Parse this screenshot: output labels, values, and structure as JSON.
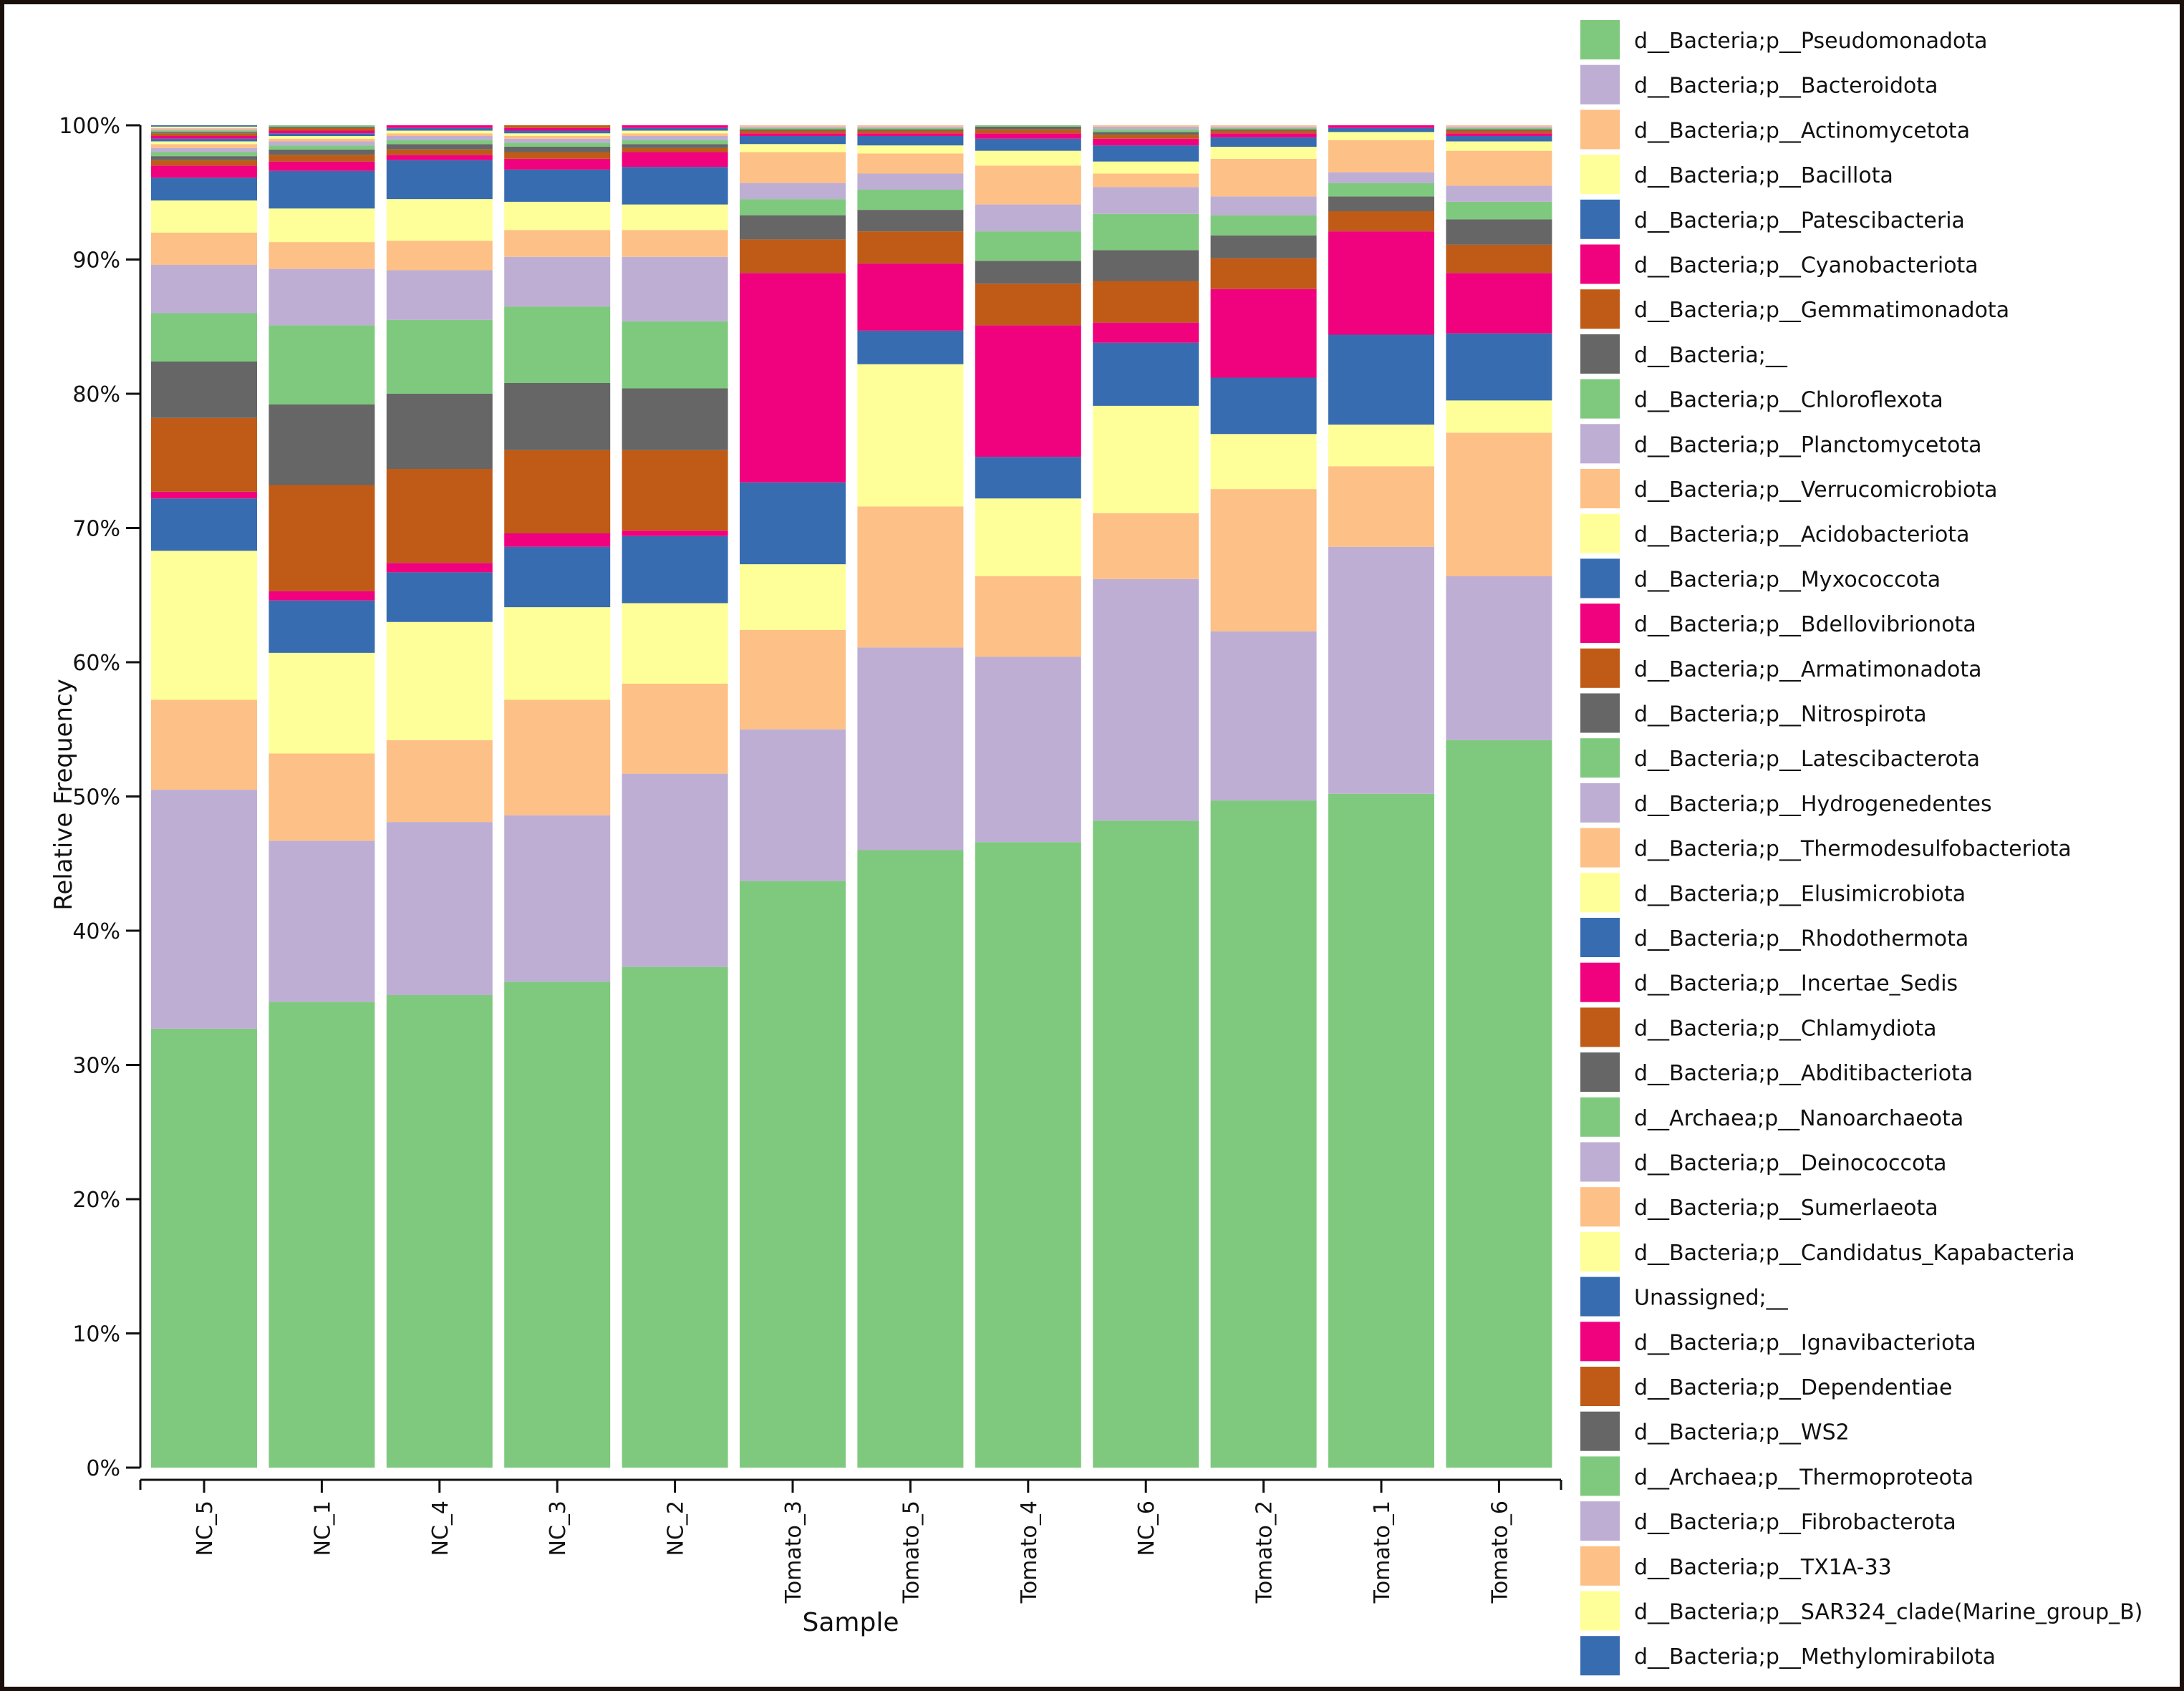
{
  "chart_data": {
    "type": "bar",
    "stacked": true,
    "xlabel": "Sample",
    "ylabel": "Relative Frequency",
    "ylim": [
      0,
      1
    ],
    "yticks": [
      "0%",
      "10%",
      "20%",
      "30%",
      "40%",
      "50%",
      "60%",
      "70%",
      "80%",
      "90%",
      "100%"
    ],
    "legend_position": "right",
    "categories": [
      "NC_5",
      "NC_1",
      "NC_4",
      "NC_3",
      "NC_2",
      "Tomato_3",
      "Tomato_5",
      "Tomato_4",
      "NC_6",
      "Tomato_2",
      "Tomato_1",
      "Tomato_6"
    ],
    "series": [
      {
        "name": "d__Bacteria;p__Pseudomonadota",
        "color": "#7fc97f",
        "values": [
          0.327,
          0.347,
          0.352,
          0.362,
          0.373,
          0.437,
          0.46,
          0.466,
          0.482,
          0.497,
          0.502,
          0.542
        ]
      },
      {
        "name": "d__Bacteria;p__Bacteroidota",
        "color": "#beaed4",
        "values": [
          0.178,
          0.12,
          0.129,
          0.124,
          0.144,
          0.113,
          0.151,
          0.138,
          0.18,
          0.126,
          0.184,
          0.122
        ]
      },
      {
        "name": "d__Bacteria;p__Actinomycetota",
        "color": "#fdc086",
        "values": [
          0.067,
          0.065,
          0.061,
          0.086,
          0.067,
          0.074,
          0.105,
          0.06,
          0.049,
          0.106,
          0.06,
          0.107
        ]
      },
      {
        "name": "d__Bacteria;p__Bacillota",
        "color": "#ffff99",
        "values": [
          0.111,
          0.075,
          0.088,
          0.069,
          0.06,
          0.049,
          0.106,
          0.058,
          0.08,
          0.041,
          0.031,
          0.024
        ]
      },
      {
        "name": "d__Bacteria;p__Patescibacteria",
        "color": "#386cb0",
        "values": [
          0.039,
          0.039,
          0.037,
          0.045,
          0.05,
          0.061,
          0.025,
          0.031,
          0.047,
          0.042,
          0.067,
          0.05
        ]
      },
      {
        "name": "d__Bacteria;p__Cyanobacteriota",
        "color": "#f0027f",
        "values": [
          0.005,
          0.007,
          0.007,
          0.01,
          0.004,
          0.156,
          0.05,
          0.098,
          0.015,
          0.066,
          0.077,
          0.045
        ]
      },
      {
        "name": "d__Bacteria;p__Gemmatimonadota",
        "color": "#bf5b17",
        "values": [
          0.055,
          0.079,
          0.07,
          0.062,
          0.06,
          0.025,
          0.024,
          0.031,
          0.031,
          0.023,
          0.015,
          0.021
        ]
      },
      {
        "name": "d__Bacteria;__",
        "color": "#666666",
        "values": [
          0.042,
          0.06,
          0.056,
          0.05,
          0.046,
          0.018,
          0.016,
          0.017,
          0.023,
          0.017,
          0.011,
          0.019
        ]
      },
      {
        "name": "d__Bacteria;p__Chloroflexota",
        "color": "#7fc97f",
        "values": [
          0.036,
          0.059,
          0.055,
          0.057,
          0.05,
          0.012,
          0.015,
          0.022,
          0.027,
          0.015,
          0.01,
          0.013
        ]
      },
      {
        "name": "d__Bacteria;p__Planctomycetota",
        "color": "#beaed4",
        "values": [
          0.036,
          0.042,
          0.037,
          0.037,
          0.048,
          0.012,
          0.012,
          0.02,
          0.02,
          0.014,
          0.008,
          0.012
        ]
      },
      {
        "name": "d__Bacteria;p__Verrucomicrobiota",
        "color": "#fdc086",
        "values": [
          0.024,
          0.02,
          0.022,
          0.02,
          0.02,
          0.023,
          0.015,
          0.029,
          0.01,
          0.028,
          0.024,
          0.026
        ]
      },
      {
        "name": "d__Bacteria;p__Acidobacteriota",
        "color": "#ffff99",
        "values": [
          0.024,
          0.025,
          0.031,
          0.021,
          0.019,
          0.006,
          0.006,
          0.011,
          0.009,
          0.009,
          0.006,
          0.007
        ]
      },
      {
        "name": "d__Bacteria;p__Myxococcota",
        "color": "#386cb0",
        "values": [
          0.017,
          0.028,
          0.029,
          0.024,
          0.028,
          0.006,
          0.007,
          0.009,
          0.012,
          0.007,
          0.003,
          0.004
        ]
      },
      {
        "name": "d__Bacteria;p__Bdellovibrionota",
        "color": "#f0027f",
        "values": [
          0.009,
          0.007,
          0.004,
          0.008,
          0.011,
          0.002,
          0.002,
          0.004,
          0.005,
          0.003,
          0.002,
          0.002
        ]
      },
      {
        "name": "d__Bacteria;p__Armatimonadota",
        "color": "#bf5b17",
        "values": [
          0.004,
          0.005,
          0.004,
          0.005,
          0.003,
          0.002,
          0.002,
          0.003,
          0.003,
          0.002,
          0.001,
          0.002
        ]
      },
      {
        "name": "d__Bacteria;p__Nitrospirota",
        "color": "#666666",
        "values": [
          0.003,
          0.004,
          0.004,
          0.004,
          0.003,
          0.001,
          0.001,
          0.002,
          0.002,
          0.001,
          0.001,
          0.001
        ]
      },
      {
        "name": "d__Bacteria;p__Latescibacterota",
        "color": "#7fc97f",
        "values": [
          0.003,
          0.003,
          0.003,
          0.003,
          0.003,
          0.001,
          0.001,
          0.002,
          0.002,
          0.001,
          0.001,
          0.001
        ]
      },
      {
        "name": "d__Bacteria;p__Hydrogenedentes",
        "color": "#beaed4",
        "values": [
          0.003,
          0.003,
          0.003,
          0.003,
          0.003,
          0.001,
          0.001,
          0.002,
          0.002,
          0.001,
          0.001,
          0.001
        ]
      },
      {
        "name": "d__Bacteria;p__Thermodesulfobacteriota",
        "color": "#fdc086",
        "values": [
          0.003,
          0.002,
          0.002,
          0.002,
          0.002,
          0.001,
          0.001,
          0.001,
          0.002,
          0.001,
          0.001,
          0.001
        ]
      },
      {
        "name": "d__Bacteria;p__Elusimicrobiota",
        "color": "#ffff99",
        "values": [
          0.002,
          0.002,
          0.002,
          0.002,
          0.002,
          0.001,
          0.001,
          0.001,
          0.001,
          0.001,
          0.001,
          0.001
        ]
      },
      {
        "name": "d__Bacteria;p__Rhodothermota",
        "color": "#386cb0",
        "values": [
          0.002,
          0.002,
          0.002,
          0.002,
          0.002,
          0.001,
          0.001,
          0.001,
          0.001,
          0.001,
          0.001,
          0.001
        ]
      },
      {
        "name": "d__Bacteria;p__Incertae_Sedis",
        "color": "#f0027f",
        "values": [
          0.002,
          0.002,
          0.002,
          0.002,
          0.002,
          0.001,
          0.001,
          0.001,
          0.001,
          0.001,
          0.001,
          0.001
        ]
      },
      {
        "name": "d__Bacteria;p__Chlamydiota",
        "color": "#bf5b17",
        "values": [
          0.002,
          0.002,
          0.002,
          0.002,
          0.002,
          0.001,
          0.001,
          0.001,
          0.001,
          0.001,
          0.001,
          0.001
        ]
      },
      {
        "name": "d__Bacteria;p__Abditibacteriota",
        "color": "#666666",
        "values": [
          0.001,
          0.001,
          0.001,
          0.001,
          0.001,
          0.001,
          0.001,
          0.001,
          0.001,
          0.001,
          0.001,
          0.001
        ]
      },
      {
        "name": "d__Archaea;p__Nanoarchaeota",
        "color": "#7fc97f",
        "values": [
          0.001,
          0.001,
          0.001,
          0.001,
          0.001,
          0.001,
          0.001,
          0.001,
          0.001,
          0.001,
          0.001,
          0.001
        ]
      },
      {
        "name": "d__Bacteria;p__Deinococcota",
        "color": "#beaed4",
        "values": [
          0.001,
          0.001,
          0.001,
          0.001,
          0.001,
          0.001,
          0.001,
          0.001,
          0.001,
          0.001,
          0.001,
          0.001
        ]
      },
      {
        "name": "d__Bacteria;p__Sumerlaeota",
        "color": "#fdc086",
        "values": [
          0.001,
          0.001,
          0.001,
          0.001,
          0.001,
          0.001,
          0.001,
          0.001,
          0.001,
          0.001,
          0.001,
          0.001
        ]
      },
      {
        "name": "d__Bacteria;p__Candidatus_Kapabacteria",
        "color": "#ffff99",
        "values": [
          0.001,
          0.001,
          0.001,
          0.001,
          0.001,
          0.001,
          0.001,
          0.001,
          0.001,
          0.001,
          0.001,
          0.001
        ]
      },
      {
        "name": "Unassigned;__",
        "color": "#386cb0",
        "values": [
          0.001,
          0.001,
          0.001,
          0.001,
          0.001,
          0.001,
          0.001,
          0.001,
          0.001,
          0.001,
          0.001,
          0.001
        ]
      },
      {
        "name": "d__Bacteria;p__Ignavibacteriota",
        "color": "#f0027f",
        "values": [
          0.001,
          0.001,
          0.001,
          0.001,
          0.001,
          0.001,
          0.001,
          0.001,
          0.001,
          0.001,
          0.001,
          0.001
        ]
      },
      {
        "name": "d__Bacteria;p__Dependentiae",
        "color": "#bf5b17",
        "values": [
          0.001,
          0.001,
          0.001,
          0.001,
          0.001,
          0.001,
          0.001,
          0.001,
          0.001,
          0.001,
          0.001,
          0.001
        ]
      },
      {
        "name": "d__Bacteria;p__WS2",
        "color": "#666666",
        "values": [
          0.001,
          0.001,
          0.001,
          0.001,
          0.001,
          0.001,
          0.001,
          0.001,
          0.001,
          0.001,
          0.001,
          0.001
        ]
      },
      {
        "name": "d__Archaea;p__Thermoproteota",
        "color": "#7fc97f",
        "values": [
          0.001,
          0.001,
          0.001,
          0.001,
          0.001,
          0.001,
          0.001,
          0.001,
          0.001,
          0.001,
          0.001,
          0.001
        ]
      },
      {
        "name": "d__Bacteria;p__Fibrobacterota",
        "color": "#beaed4",
        "values": [
          0.001,
          0.001,
          0.001,
          0.001,
          0.001,
          0.001,
          0.001,
          0.001,
          0.001,
          0.001,
          0.001,
          0.001
        ]
      },
      {
        "name": "d__Bacteria;p__TX1A-33",
        "color": "#fdc086",
        "values": [
          0.001,
          0.001,
          0.001,
          0.001,
          0.001,
          0.001,
          0.001,
          0.001,
          0.001,
          0.001,
          0.001,
          0.001
        ]
      },
      {
        "name": "d__Bacteria;p__SAR324_clade(Marine_group_B)",
        "color": "#ffff99",
        "values": [
          0.001,
          0.001,
          0.001,
          0.001,
          0.001,
          0.001,
          0.001,
          0.001,
          0.001,
          0.001,
          0.001,
          0.001
        ]
      },
      {
        "name": "d__Bacteria;p__Methylomirabilota",
        "color": "#386cb0",
        "values": [
          0.001,
          0.001,
          0.001,
          0.001,
          0.001,
          0.001,
          0.001,
          0.001,
          0.001,
          0.001,
          0.001,
          0.001
        ]
      }
    ]
  }
}
